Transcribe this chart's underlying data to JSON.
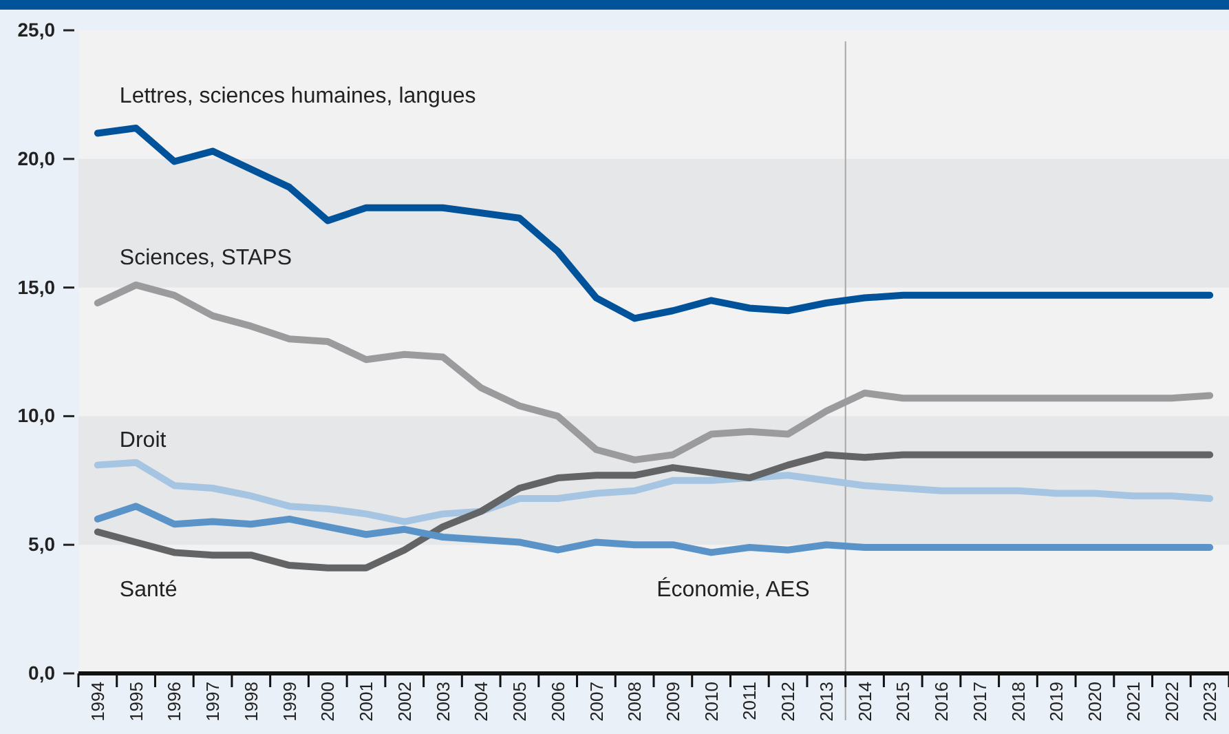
{
  "chart_data": {
    "type": "line",
    "x": [
      1994,
      1995,
      1996,
      1997,
      1998,
      1999,
      2000,
      2001,
      2002,
      2003,
      2004,
      2005,
      2006,
      2007,
      2008,
      2009,
      2010,
      2011,
      2012,
      2013,
      2014,
      2015,
      2016,
      2017,
      2018,
      2019,
      2020,
      2021,
      2022,
      2023
    ],
    "xlim": [
      1993.5,
      2023.5
    ],
    "xticks": [
      {
        "value": 1993.5,
        "label": null
      },
      {
        "value": 1994,
        "label": "1994"
      },
      {
        "value": 1994.5,
        "label": null
      },
      {
        "value": 1995,
        "label": "1995"
      },
      {
        "value": 1995.5,
        "label": null
      },
      {
        "value": 1996,
        "label": "1996"
      },
      {
        "value": 1996.5,
        "label": null
      },
      {
        "value": 1997,
        "label": "1997"
      },
      {
        "value": 1997.5,
        "label": null
      },
      {
        "value": 1998,
        "label": "1998"
      },
      {
        "value": 1998.5,
        "label": null
      },
      {
        "value": 1999,
        "label": "1999"
      },
      {
        "value": 1999.5,
        "label": null
      },
      {
        "value": 2000,
        "label": "2000"
      },
      {
        "value": 2000.5,
        "label": null
      },
      {
        "value": 2001,
        "label": "2001"
      },
      {
        "value": 2001.5,
        "label": null
      },
      {
        "value": 2002,
        "label": "2002"
      },
      {
        "value": 2002.5,
        "label": null
      },
      {
        "value": 2003,
        "label": "2003"
      },
      {
        "value": 2003.5,
        "label": null
      },
      {
        "value": 2004,
        "label": "2004"
      },
      {
        "value": 2004.5,
        "label": null
      },
      {
        "value": 2005,
        "label": "2005"
      },
      {
        "value": 2005.5,
        "label": null
      },
      {
        "value": 2006,
        "label": "2006"
      },
      {
        "value": 2006.5,
        "label": null
      },
      {
        "value": 2007,
        "label": "2007"
      },
      {
        "value": 2007.5,
        "label": null
      },
      {
        "value": 2008,
        "label": "2008"
      },
      {
        "value": 2008.5,
        "label": null
      },
      {
        "value": 2009,
        "label": "2009"
      },
      {
        "value": 2009.5,
        "label": null
      },
      {
        "value": 2010,
        "label": "2010"
      },
      {
        "value": 2010.5,
        "label": null
      },
      {
        "value": 2011,
        "label": "2011"
      },
      {
        "value": 2011.5,
        "label": null
      },
      {
        "value": 2012,
        "label": "2012"
      },
      {
        "value": 2012.5,
        "label": null
      },
      {
        "value": 2013,
        "label": "2013"
      },
      {
        "value": 2013.5,
        "label": null
      },
      {
        "value": 2014,
        "label": "2014"
      },
      {
        "value": 2014.5,
        "label": null
      },
      {
        "value": 2015,
        "label": "2015"
      },
      {
        "value": 2015.5,
        "label": null
      },
      {
        "value": 2016,
        "label": "2016"
      },
      {
        "value": 2016.5,
        "label": null
      },
      {
        "value": 2017,
        "label": "2017"
      },
      {
        "value": 2017.5,
        "label": null
      },
      {
        "value": 2018,
        "label": "2018"
      },
      {
        "value": 2018.5,
        "label": null
      },
      {
        "value": 2019,
        "label": "2019"
      },
      {
        "value": 2019.5,
        "label": null
      },
      {
        "value": 2020,
        "label": "2020"
      },
      {
        "value": 2020.5,
        "label": null
      },
      {
        "value": 2021,
        "label": "2021"
      },
      {
        "value": 2021.5,
        "label": null
      },
      {
        "value": 2022,
        "label": "2022"
      },
      {
        "value": 2022.5,
        "label": null
      },
      {
        "value": 2023,
        "label": "2023"
      },
      {
        "value": 2023.5,
        "label": null
      }
    ],
    "ylim": [
      0,
      25
    ],
    "yticks": [
      {
        "value": 0,
        "label": "0,0"
      },
      {
        "value": 5,
        "label": "5,0"
      },
      {
        "value": 10,
        "label": "10,0"
      },
      {
        "value": 15,
        "label": "15,0"
      },
      {
        "value": 20,
        "label": "20,0"
      },
      {
        "value": 25,
        "label": "25,0"
      }
    ],
    "grid": false,
    "legend": false,
    "marker": "none",
    "line_style": "solid",
    "bands": [
      {
        "axis": "y",
        "from": 5,
        "to": 10,
        "color": "#e6e7e9"
      },
      {
        "axis": "y",
        "from": 15,
        "to": 20,
        "color": "#e6e7e9"
      }
    ],
    "ref_lines": [
      {
        "axis": "x",
        "value": 2013.5,
        "color": "#a6a6a6"
      }
    ],
    "series": [
      {
        "name": "Lettres, sciences humaines, langues",
        "color": "#00529b",
        "values": [
          21.0,
          21.2,
          19.9,
          20.3,
          19.6,
          18.9,
          17.6,
          18.1,
          18.1,
          18.1,
          17.9,
          17.7,
          16.4,
          14.6,
          13.8,
          14.1,
          14.5,
          14.2,
          14.1,
          14.4,
          14.6,
          14.7,
          14.7,
          14.7,
          14.7,
          14.7,
          14.7,
          14.7,
          14.7,
          14.7
        ]
      },
      {
        "name": "Sciences, STAPS",
        "color": "#9b9b9d",
        "values": [
          14.4,
          15.1,
          14.7,
          13.9,
          13.5,
          13.0,
          12.9,
          12.2,
          12.4,
          12.3,
          11.1,
          10.4,
          10.0,
          8.7,
          8.3,
          8.5,
          9.3,
          9.4,
          9.3,
          10.2,
          10.9,
          10.7,
          10.7,
          10.7,
          10.7,
          10.7,
          10.7,
          10.7,
          10.7,
          10.8
        ]
      },
      {
        "name": "Droit",
        "color": "#a5c5e2",
        "values": [
          8.1,
          8.2,
          7.3,
          7.2,
          6.9,
          6.5,
          6.4,
          6.2,
          5.9,
          6.2,
          6.3,
          6.8,
          6.8,
          7.0,
          7.1,
          7.5,
          7.5,
          7.6,
          7.7,
          7.5,
          7.3,
          7.2,
          7.1,
          7.1,
          7.1,
          7.0,
          7.0,
          6.9,
          6.9,
          6.8
        ]
      },
      {
        "name": "Santé",
        "color": "#636466",
        "values": [
          5.5,
          5.1,
          4.7,
          4.6,
          4.6,
          4.2,
          4.1,
          4.1,
          4.8,
          5.7,
          6.3,
          7.2,
          7.6,
          7.7,
          7.7,
          8.0,
          7.8,
          7.6,
          8.1,
          8.5,
          8.4,
          8.5,
          8.5,
          8.5,
          8.5,
          8.5,
          8.5,
          8.5,
          8.5,
          8.5
        ]
      },
      {
        "name": "Économie, AES",
        "color": "#5a93c8",
        "values": [
          6.0,
          6.5,
          5.8,
          5.9,
          5.8,
          6.0,
          5.7,
          5.4,
          5.6,
          5.3,
          5.2,
          5.1,
          4.8,
          5.1,
          5.0,
          5.0,
          4.7,
          4.9,
          4.8,
          5.0,
          4.9,
          4.9,
          4.9,
          4.9,
          4.9,
          4.9,
          4.9,
          4.9,
          4.9,
          4.9
        ]
      }
    ]
  }
}
